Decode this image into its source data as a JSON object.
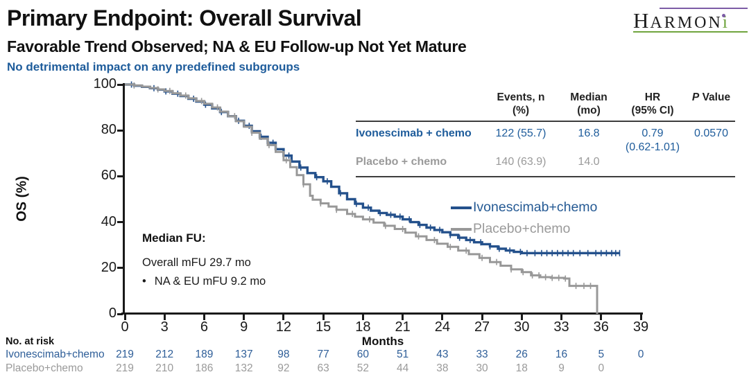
{
  "header": {
    "title": "Primary Endpoint: Overall Survival",
    "subtitle": "Favorable Trend Observed; NA & EU Follow-up Not Yet Mature",
    "note": "No detrimental impact on any predefined subgroups"
  },
  "logo": {
    "first_letter": "H",
    "rest": "ARMON",
    "i": "i"
  },
  "colors": {
    "accent_blue_text": "#1E5C9B",
    "curve_blue": "#24518C",
    "curve_gray": "#989898",
    "logo_purple": "#7C5CA6",
    "logo_green": "#6FA43D"
  },
  "chart_data": {
    "type": "line",
    "subtype": "kaplan-meier-step",
    "title": "Overall Survival",
    "xlabel": "Months",
    "ylabel": "OS (%)",
    "xlim": [
      0,
      39
    ],
    "ylim": [
      0,
      100
    ],
    "x_ticks": [
      0,
      3,
      6,
      9,
      12,
      15,
      18,
      21,
      24,
      27,
      30,
      33,
      36,
      39
    ],
    "y_ticks": [
      0,
      20,
      40,
      60,
      80,
      100
    ],
    "grid": false,
    "legend_position": "inside-right",
    "series": [
      {
        "name": "Ivonescimab+chemo",
        "color": "#24518C",
        "median_months": 16.8,
        "steps": [
          [
            0,
            100
          ],
          [
            0.7,
            99.5
          ],
          [
            1.3,
            99
          ],
          [
            1.9,
            98.4
          ],
          [
            2.5,
            97.8
          ],
          [
            3,
            97
          ],
          [
            3.6,
            96
          ],
          [
            4.2,
            95
          ],
          [
            4.8,
            93.8
          ],
          [
            5.4,
            92.6
          ],
          [
            6,
            91.2
          ],
          [
            6.6,
            89.6
          ],
          [
            7.2,
            88
          ],
          [
            7.8,
            86.2
          ],
          [
            8.4,
            84.2
          ],
          [
            9,
            82
          ],
          [
            9.6,
            79.6
          ],
          [
            10.2,
            77.2
          ],
          [
            10.8,
            74.6
          ],
          [
            11.4,
            71.8
          ],
          [
            12,
            69
          ],
          [
            12.6,
            66.4
          ],
          [
            13.2,
            63.8
          ],
          [
            13.8,
            61.4
          ],
          [
            14.4,
            59.6
          ],
          [
            15,
            57.8
          ],
          [
            15.6,
            55.4
          ],
          [
            16.2,
            52.6
          ],
          [
            16.8,
            50
          ],
          [
            17.4,
            48
          ],
          [
            18,
            46.3
          ],
          [
            18.6,
            45
          ],
          [
            19.2,
            44
          ],
          [
            19.8,
            43.2
          ],
          [
            20.4,
            42.4
          ],
          [
            21,
            41.2
          ],
          [
            21.6,
            40
          ],
          [
            22.2,
            38.8
          ],
          [
            22.8,
            37.6
          ],
          [
            23.4,
            36.6
          ],
          [
            24,
            35.6
          ],
          [
            24.6,
            34.4
          ],
          [
            25.2,
            33.2
          ],
          [
            25.8,
            32.2
          ],
          [
            26.4,
            31.2
          ],
          [
            27,
            30.4
          ],
          [
            27.6,
            29.4
          ],
          [
            28.2,
            28.4
          ],
          [
            28.8,
            27.6
          ],
          [
            29.4,
            27
          ],
          [
            30,
            26.5
          ],
          [
            37.4,
            26.5
          ]
        ],
        "censor_months": [
          0.5,
          2.2,
          3.1,
          4.0,
          5.2,
          6.1,
          7.3,
          8.6,
          9.4,
          10.3,
          11.2,
          12.4,
          13.3,
          14.5,
          15.3,
          16.3,
          17.5,
          18.4,
          19.3,
          20.1,
          20.8,
          21.5,
          22.3,
          23.1,
          23.8,
          24.6,
          25.3,
          26.1,
          26.9,
          27.6,
          28.3,
          29.1,
          29.9,
          30.4,
          31.0,
          31.5,
          31.9,
          32.3,
          32.7,
          33.1,
          33.5,
          33.9,
          34.4,
          35.0,
          35.6,
          36.0,
          36.4,
          36.8,
          37.1,
          37.4
        ]
      },
      {
        "name": "Placebo+chemo",
        "color": "#989898",
        "median_months": 14.0,
        "steps": [
          [
            0,
            100
          ],
          [
            0.7,
            99.6
          ],
          [
            1.3,
            99.1
          ],
          [
            1.9,
            98.5
          ],
          [
            2.5,
            97.9
          ],
          [
            3,
            97.2
          ],
          [
            3.6,
            96.2
          ],
          [
            4.2,
            95.2
          ],
          [
            4.8,
            94
          ],
          [
            5.4,
            92.8
          ],
          [
            6,
            91.6
          ],
          [
            6.6,
            90
          ],
          [
            7.2,
            88.2
          ],
          [
            7.8,
            86.2
          ],
          [
            8.4,
            84
          ],
          [
            9,
            81.6
          ],
          [
            9.6,
            79
          ],
          [
            10.2,
            76.4
          ],
          [
            10.8,
            73.6
          ],
          [
            11.4,
            70.6
          ],
          [
            12,
            67
          ],
          [
            12.5,
            64
          ],
          [
            13,
            60.5
          ],
          [
            13.5,
            56.5
          ],
          [
            14,
            51.5
          ],
          [
            14.2,
            49.8
          ],
          [
            14.8,
            48.2
          ],
          [
            15.4,
            46.8
          ],
          [
            16,
            45.4
          ],
          [
            16.8,
            43.6
          ],
          [
            17.4,
            42.4
          ],
          [
            18,
            41.2
          ],
          [
            18.8,
            39.8
          ],
          [
            19.6,
            38.4
          ],
          [
            20.4,
            37
          ],
          [
            21.2,
            35.4
          ],
          [
            22,
            33.8
          ],
          [
            22.8,
            32.2
          ],
          [
            23.6,
            30.6
          ],
          [
            24.4,
            29.2
          ],
          [
            25.2,
            27.6
          ],
          [
            26,
            26
          ],
          [
            26.8,
            24.4
          ],
          [
            27.6,
            22.6
          ],
          [
            28.4,
            21
          ],
          [
            29.2,
            19.4
          ],
          [
            30,
            18.2
          ],
          [
            30.7,
            16.8
          ],
          [
            31.4,
            16
          ],
          [
            32.2,
            15.7
          ],
          [
            33.2,
            15.4
          ],
          [
            33.6,
            12.2
          ],
          [
            35.7,
            12.2
          ],
          [
            35.7,
            0
          ]
        ],
        "censor_months": [
          0.7,
          2.5,
          3.4,
          4.6,
          5.8,
          7.0,
          8.3,
          9.6,
          10.9,
          12.2,
          13.5,
          14.8,
          16.0,
          17.2,
          18.5,
          19.7,
          21.0,
          22.2,
          23.4,
          24.6,
          25.8,
          27.0,
          28.1,
          29.2,
          30.1,
          30.8,
          31.3,
          31.8,
          32.3,
          32.8,
          33.3,
          34.1,
          34.7,
          35.2
        ]
      }
    ]
  },
  "results_table": {
    "col_headers": [
      [
        "Events, n",
        "(%)"
      ],
      [
        "Median",
        "(mo)"
      ],
      [
        "HR",
        "(95% CI)"
      ]
    ],
    "p_italic": "P",
    "p_rest": " Value",
    "rows": [
      {
        "label": "Ivonescimab + chemo",
        "events": "122 (55.7)",
        "median": "16.8",
        "hr": "0.79",
        "hr_ci": "(0.62-1.01)",
        "p": "0.0570"
      },
      {
        "label": "Placebo + chemo",
        "events": "140 (63.9)",
        "median": "14.0",
        "hr": "",
        "hr_ci": "",
        "p": ""
      }
    ]
  },
  "legend": [
    {
      "label": "Ivonescimab+chemo"
    },
    {
      "label": "Placebo+chemo"
    }
  ],
  "median_fu": {
    "heading": "Median FU:",
    "overall": "Overall mFU 29.7 mo",
    "bullet": "NA & EU mFU 9.2 mo"
  },
  "at_risk": {
    "heading": "No. at risk",
    "rows": [
      {
        "label": "Ivonescimab+chemo",
        "counts": [
          "219",
          "212",
          "189",
          "137",
          "98",
          "77",
          "60",
          "51",
          "43",
          "33",
          "26",
          "16",
          "5",
          "0"
        ]
      },
      {
        "label": "Placebo+chemo",
        "counts": [
          "219",
          "210",
          "186",
          "132",
          "92",
          "63",
          "52",
          "44",
          "38",
          "30",
          "18",
          "9",
          "0",
          ""
        ]
      }
    ]
  }
}
